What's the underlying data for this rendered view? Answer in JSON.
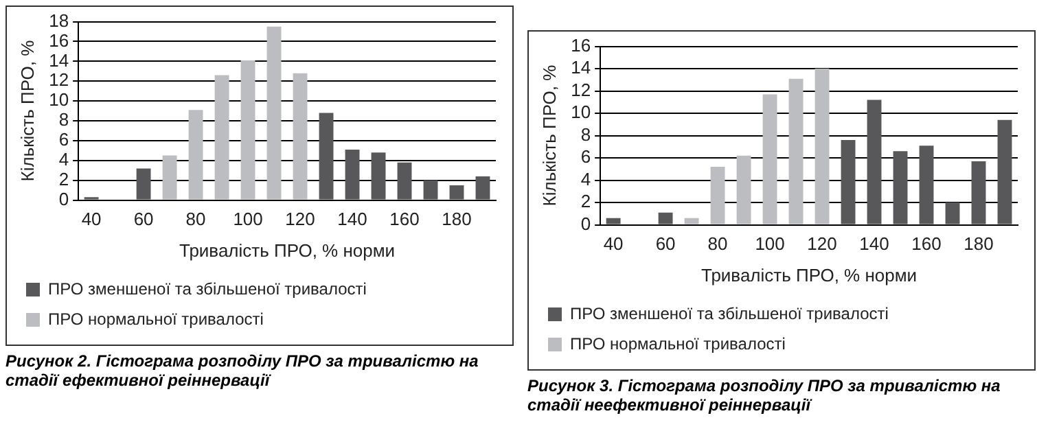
{
  "chart_data": [
    {
      "type": "bar",
      "ylabel": "Кількість ПРО, %",
      "xlabel": "Тривалість ПРО, % норми",
      "categories": [
        "40",
        null,
        "60",
        null,
        "80",
        null,
        "100",
        null,
        "120",
        null,
        "140",
        null,
        "160",
        null,
        "180",
        null
      ],
      "series": [
        {
          "name": "ПРО зменшеної та збільшеної тривалості",
          "color": "#58585a",
          "values": [
            0.3,
            null,
            3.2,
            null,
            null,
            null,
            null,
            null,
            null,
            8.8,
            5.1,
            4.8,
            3.8,
            2.0,
            1.5,
            2.4
          ]
        },
        {
          "name": "ПРО нормальної тривалості",
          "color": "#bcbdc0",
          "values": [
            null,
            null,
            null,
            4.5,
            9.1,
            12.6,
            14.1,
            17.5,
            12.8,
            null,
            null,
            null,
            null,
            null,
            null,
            null
          ]
        }
      ],
      "ylim": [
        0,
        18
      ],
      "yticks": [
        0,
        2,
        4,
        6,
        8,
        10,
        12,
        14,
        16,
        18
      ],
      "grid": "y",
      "legend": "bottom",
      "annotations": [
        "Рисунок 2. Гістограма розподілу ПРО за тривалістю на стадії ефективної реіннервації"
      ]
    },
    {
      "type": "bar",
      "ylabel": "Кількість ПРО, %",
      "xlabel": "Тривалість ПРО, % норми",
      "categories": [
        "40",
        null,
        "60",
        null,
        "80",
        null,
        "100",
        null,
        "120",
        null,
        "140",
        null,
        "160",
        null,
        "180",
        null
      ],
      "series": [
        {
          "name": "ПРО зменшеної та збільшеної тривалості",
          "color": "#58585a",
          "values": [
            0.6,
            null,
            1.1,
            null,
            null,
            null,
            null,
            null,
            null,
            7.6,
            11.2,
            6.6,
            7.1,
            2.0,
            5.7,
            9.4
          ]
        },
        {
          "name": "ПРО нормальної тривалості",
          "color": "#bcbdc0",
          "values": [
            null,
            null,
            null,
            0.6,
            5.2,
            6.2,
            11.7,
            13.1,
            14.0,
            null,
            null,
            null,
            null,
            null,
            null,
            null
          ]
        }
      ],
      "ylim": [
        0,
        16
      ],
      "yticks": [
        0,
        2,
        4,
        6,
        8,
        10,
        12,
        14,
        16
      ],
      "grid": "y",
      "legend": "bottom",
      "annotations": [
        "Рисунок 3. Гістограма розподілу ПРО за тривалістю на стадії неефективної реіннервації"
      ]
    }
  ]
}
